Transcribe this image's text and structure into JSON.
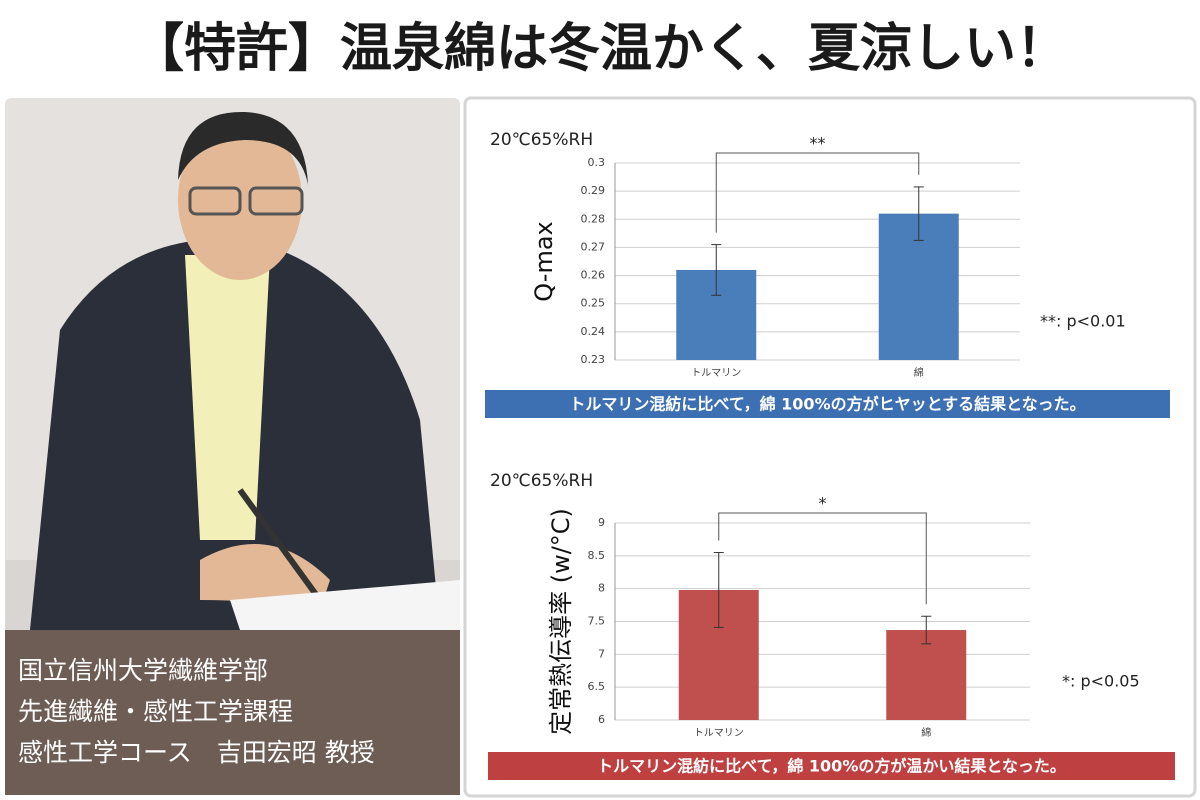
{
  "title": "【特許】温泉綿は冬温かく、夏涼しい！",
  "profile": {
    "lines": [
      "国立信州大学繊維学部",
      "先進繊維・感性工学課程",
      "感性工学コース　吉田宏昭 教授"
    ]
  },
  "chart_data": [
    {
      "type": "bar",
      "condition": "20℃65%RH",
      "y_label": "Q-max",
      "categories": [
        "トルマリン",
        "綿"
      ],
      "values": [
        0.262,
        0.282
      ],
      "errors": [
        0.009,
        0.0095
      ],
      "color": "#4a7ebb",
      "ylim": [
        0.23,
        0.3
      ],
      "yticks": [
        0.23,
        0.24,
        0.25,
        0.26,
        0.27,
        0.28,
        0.29,
        0.3
      ],
      "grid": true,
      "significance": "**",
      "note": "**: p<0.01",
      "caption": "トルマリン混紡に比べて，綿 100%の方がヒヤッとする結果となった。",
      "caption_color": "#3d6fb3"
    },
    {
      "type": "bar",
      "condition": "20℃65%RH",
      "y_label": "定常熱伝導率 (w/°C)",
      "categories": [
        "トルマリン",
        "綿"
      ],
      "values": [
        7.98,
        7.37
      ],
      "errors": [
        0.57,
        0.21
      ],
      "color": "#c0504d",
      "ylim": [
        6,
        9
      ],
      "yticks": [
        6,
        6.5,
        7,
        7.5,
        8,
        8.5,
        9
      ],
      "grid": true,
      "significance": "*",
      "note": "*: p<0.05",
      "caption": "トルマリン混紡に比べて，綿 100%の方が温かい結果となった。",
      "caption_color": "#bf4040"
    }
  ]
}
